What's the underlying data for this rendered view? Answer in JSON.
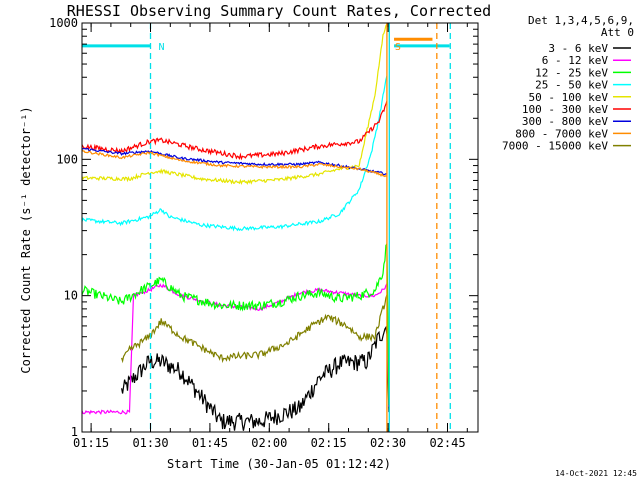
{
  "chart_data": {
    "type": "line",
    "title": "RHESSI Observing Summary Count Rates, Corrected",
    "xlabel": "Start Time (30-Jan-05 01:12:42)",
    "ylabel": "Corrected Count Rate (s⁻¹ detector⁻¹)",
    "y_scale": "log",
    "ylim": [
      1,
      1000
    ],
    "xlim_minutes": [
      0,
      100
    ],
    "x_ticks": [
      {
        "label": "01:15",
        "minutes": 2.3
      },
      {
        "label": "01:30",
        "minutes": 17.3
      },
      {
        "label": "01:45",
        "minutes": 32.3
      },
      {
        "label": "02:00",
        "minutes": 47.3
      },
      {
        "label": "02:15",
        "minutes": 62.3
      },
      {
        "label": "02:30",
        "minutes": 77.3
      },
      {
        "label": "02:45",
        "minutes": 92.3
      }
    ],
    "y_ticks": [
      {
        "label": "1",
        "value": 1
      },
      {
        "label": "10",
        "value": 10
      },
      {
        "label": "100",
        "value": 100
      },
      {
        "label": "1000",
        "value": 1000
      }
    ],
    "legend_header": [
      "Det 1,3,4,5,6,9,",
      "Att 0"
    ],
    "legend_placement": "right",
    "timestamp": "14-Oct-2021 12:45",
    "markers": [
      {
        "label": "N",
        "minutes": 17.3,
        "color": "#00e0e8"
      },
      {
        "label": "S",
        "minutes": 77.0,
        "color": "#ff8c00"
      }
    ],
    "vertical_lines": [
      {
        "minutes": 17.3,
        "color": "#00e0e8",
        "dashed": true
      },
      {
        "minutes": 77.0,
        "color": "#ff8c00",
        "dashed": false
      },
      {
        "minutes": 77.6,
        "color": "#00e0e8",
        "dashed": false
      },
      {
        "minutes": 89.6,
        "color": "#ff8c00",
        "dashed": true
      },
      {
        "minutes": 93.0,
        "color": "#00e0e8",
        "dashed": true
      }
    ],
    "bars": [
      {
        "from_minutes": 0,
        "to_minutes": 17.3,
        "value": 680,
        "color": "#00e0e8"
      },
      {
        "from_minutes": 78.8,
        "to_minutes": 92.8,
        "value": 680,
        "color": "#00e0e8"
      },
      {
        "from_minutes": 78.8,
        "to_minutes": 88.5,
        "value": 760,
        "color": "#ff8c00"
      }
    ],
    "series": [
      {
        "name": "3 - 6 keV",
        "color": "#000000",
        "noise": 0.15,
        "points": [
          [
            10,
            2
          ],
          [
            17,
            3.3
          ],
          [
            20,
            3.3
          ],
          [
            25,
            2.8
          ],
          [
            35,
            1.2
          ],
          [
            45,
            1.2
          ],
          [
            55,
            1.5
          ],
          [
            60,
            2.5
          ],
          [
            65,
            3.2
          ],
          [
            72,
            3.3
          ],
          [
            75,
            5
          ],
          [
            77,
            6
          ],
          [
            77.6,
            1
          ]
        ]
      },
      {
        "name": "6 - 12 keV",
        "color": "#ff00ff",
        "noise": 0.03,
        "points": [
          [
            0,
            1.4
          ],
          [
            12,
            1.4
          ],
          [
            13,
            10
          ],
          [
            17,
            11
          ],
          [
            20,
            12
          ],
          [
            25,
            10
          ],
          [
            35,
            8.5
          ],
          [
            45,
            8
          ],
          [
            50,
            9
          ],
          [
            55,
            10.5
          ],
          [
            60,
            11
          ],
          [
            65,
            10.5
          ],
          [
            70,
            10
          ],
          [
            74,
            10
          ],
          [
            76,
            11
          ],
          [
            77,
            12
          ],
          [
            77.6,
            1
          ]
        ]
      },
      {
        "name": "12 - 25 keV",
        "color": "#00ff00",
        "noise": 0.08,
        "points": [
          [
            0,
            11
          ],
          [
            10,
            9
          ],
          [
            15,
            11
          ],
          [
            20,
            13
          ],
          [
            25,
            10
          ],
          [
            35,
            8.5
          ],
          [
            45,
            8.5
          ],
          [
            50,
            9
          ],
          [
            55,
            10
          ],
          [
            60,
            10.5
          ],
          [
            65,
            9.5
          ],
          [
            70,
            10
          ],
          [
            74,
            11
          ],
          [
            76,
            15
          ],
          [
            77,
            25
          ],
          [
            77.6,
            1
          ]
        ]
      },
      {
        "name": "25 - 50 keV",
        "color": "#00ffff",
        "noise": 0.03,
        "points": [
          [
            0,
            36
          ],
          [
            10,
            34
          ],
          [
            17,
            38
          ],
          [
            20,
            43
          ],
          [
            22,
            38
          ],
          [
            30,
            33
          ],
          [
            40,
            31
          ],
          [
            50,
            32
          ],
          [
            60,
            35
          ],
          [
            65,
            40
          ],
          [
            70,
            60
          ],
          [
            73,
            110
          ],
          [
            75,
            200
          ],
          [
            77,
            420
          ]
        ]
      },
      {
        "name": "50 - 100 keV",
        "color": "#e5e500",
        "noise": 0.03,
        "points": [
          [
            0,
            73
          ],
          [
            12,
            72
          ],
          [
            17,
            80
          ],
          [
            20,
            82
          ],
          [
            30,
            72
          ],
          [
            40,
            68
          ],
          [
            50,
            71
          ],
          [
            60,
            78
          ],
          [
            65,
            85
          ],
          [
            70,
            90
          ],
          [
            74,
            300
          ],
          [
            76,
            800
          ],
          [
            77,
            1000
          ]
        ]
      },
      {
        "name": "100 - 300 keV",
        "color": "#ff0000",
        "noise": 0.04,
        "points": [
          [
            0,
            125
          ],
          [
            10,
            115
          ],
          [
            17,
            135
          ],
          [
            20,
            138
          ],
          [
            30,
            118
          ],
          [
            40,
            105
          ],
          [
            50,
            110
          ],
          [
            60,
            125
          ],
          [
            65,
            130
          ],
          [
            70,
            135
          ],
          [
            75,
            190
          ],
          [
            77,
            260
          ]
        ]
      },
      {
        "name": "300 - 800 keV",
        "color": "#0000dd",
        "noise": 0.02,
        "points": [
          [
            0,
            120
          ],
          [
            10,
            110
          ],
          [
            17,
            115
          ],
          [
            25,
            102
          ],
          [
            35,
            95
          ],
          [
            45,
            92
          ],
          [
            55,
            92
          ],
          [
            60,
            95
          ],
          [
            65,
            90
          ],
          [
            70,
            85
          ],
          [
            75,
            80
          ],
          [
            77,
            78
          ]
        ]
      },
      {
        "name": "800 - 7000 keV",
        "color": "#ff8c00",
        "noise": 0.02,
        "points": [
          [
            0,
            115
          ],
          [
            10,
            103
          ],
          [
            17,
            112
          ],
          [
            25,
            98
          ],
          [
            35,
            90
          ],
          [
            45,
            88
          ],
          [
            55,
            88
          ],
          [
            60,
            92
          ],
          [
            65,
            88
          ],
          [
            70,
            85
          ],
          [
            75,
            78
          ],
          [
            77,
            75
          ]
        ]
      },
      {
        "name": "7000 - 15000 keV",
        "color": "#808000",
        "noise": 0.06,
        "points": [
          [
            10,
            3.3
          ],
          [
            12,
            4
          ],
          [
            17,
            5
          ],
          [
            20,
            6.5
          ],
          [
            25,
            5
          ],
          [
            35,
            3.5
          ],
          [
            45,
            3.7
          ],
          [
            52,
            4.5
          ],
          [
            58,
            6
          ],
          [
            62,
            7
          ],
          [
            67,
            6
          ],
          [
            70,
            5
          ],
          [
            74,
            5
          ],
          [
            76,
            8
          ],
          [
            77,
            10
          ]
        ]
      }
    ]
  }
}
